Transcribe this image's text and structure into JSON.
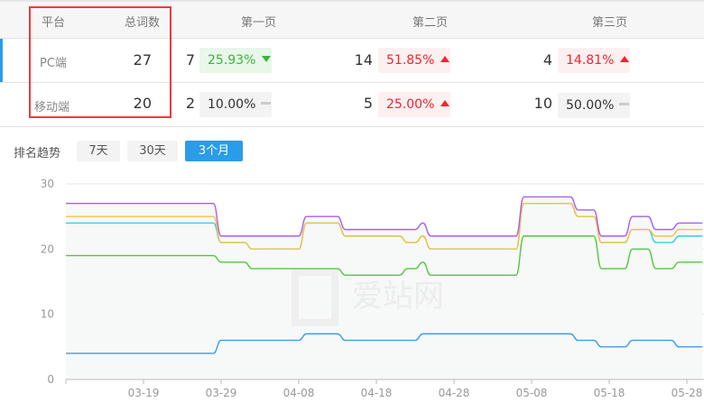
{
  "table": {
    "headers": [
      "平台",
      "总词数",
      "第一页",
      "第二页",
      "第三页"
    ],
    "rows": [
      {
        "platform": "PC端",
        "total": "27",
        "cells": [
          {
            "count": "7",
            "pct": "25.93%",
            "trend": "down"
          },
          {
            "count": "14",
            "pct": "51.85%",
            "trend": "up"
          },
          {
            "count": "4",
            "pct": "14.81%",
            "trend": "up"
          }
        ]
      },
      {
        "platform": "移动端",
        "total": "20",
        "cells": [
          {
            "count": "2",
            "pct": "10.00%",
            "trend": "flat"
          },
          {
            "count": "5",
            "pct": "25.00%",
            "trend": "up"
          },
          {
            "count": "10",
            "pct": "50.00%",
            "trend": "flat"
          }
        ]
      }
    ]
  },
  "trend": {
    "label": "排名趋势",
    "ranges": [
      "7天",
      "30天",
      "3个月"
    ],
    "active_range": "3个月"
  },
  "watermark": "爱站网",
  "colors": {
    "up": "#f5222d",
    "down": "#3cb33c",
    "accent": "#2a9ce8",
    "highlight_box": "#f03a3a"
  },
  "chart_data": {
    "type": "line",
    "x_start": "03-09",
    "x_end": "05-30",
    "x_ticks": [
      "03-19",
      "03-29",
      "04-08",
      "04-18",
      "04-28",
      "05-08",
      "05-18",
      "05-28"
    ],
    "y_ticks": [
      "0",
      "10",
      "20",
      "30"
    ],
    "ylim": [
      0,
      30
    ],
    "grid": true,
    "series": [
      {
        "color": "#a95ff0",
        "changes": [
          [
            "03-09",
            27
          ],
          [
            "03-29",
            22
          ],
          [
            "04-09",
            25
          ],
          [
            "04-14",
            23
          ],
          [
            "04-24",
            24
          ],
          [
            "04-25",
            22
          ],
          [
            "05-07",
            28
          ],
          [
            "05-14",
            26
          ],
          [
            "05-17",
            22
          ],
          [
            "05-21",
            25
          ],
          [
            "05-24",
            23
          ],
          [
            "05-27",
            24
          ]
        ]
      },
      {
        "color": "#f5c342",
        "changes": [
          [
            "03-09",
            25
          ],
          [
            "03-29",
            21
          ],
          [
            "04-02",
            20
          ],
          [
            "04-09",
            24
          ],
          [
            "04-14",
            22
          ],
          [
            "04-22",
            21
          ],
          [
            "04-24",
            22
          ],
          [
            "04-25",
            20
          ],
          [
            "05-07",
            27
          ],
          [
            "05-14",
            25
          ],
          [
            "05-17",
            21
          ],
          [
            "05-21",
            23
          ],
          [
            "05-24",
            22
          ],
          [
            "05-27",
            23
          ]
        ]
      },
      {
        "color": "#33d0e0",
        "changes": [
          [
            "03-09",
            24
          ],
          [
            "03-29",
            21
          ],
          [
            "04-02",
            20
          ],
          [
            "04-09",
            24
          ],
          [
            "04-14",
            22
          ],
          [
            "04-22",
            21
          ],
          [
            "04-24",
            22
          ],
          [
            "04-25",
            20
          ],
          [
            "05-07",
            27
          ],
          [
            "05-14",
            25
          ],
          [
            "05-17",
            21
          ],
          [
            "05-21",
            23
          ],
          [
            "05-24",
            21
          ],
          [
            "05-27",
            22
          ]
        ]
      },
      {
        "color": "#52c93f",
        "changes": [
          [
            "03-09",
            19
          ],
          [
            "03-29",
            18
          ],
          [
            "04-02",
            17
          ],
          [
            "04-14",
            16
          ],
          [
            "04-22",
            17
          ],
          [
            "04-24",
            18
          ],
          [
            "04-25",
            16
          ],
          [
            "05-07",
            22
          ],
          [
            "05-17",
            17
          ],
          [
            "05-21",
            20
          ],
          [
            "05-24",
            17
          ],
          [
            "05-27",
            18
          ]
        ]
      },
      {
        "color": "#3c9de8",
        "changes": [
          [
            "03-09",
            4
          ],
          [
            "03-29",
            6
          ],
          [
            "04-09",
            7
          ],
          [
            "04-14",
            6
          ],
          [
            "04-24",
            7
          ],
          [
            "05-14",
            6
          ],
          [
            "05-17",
            5
          ],
          [
            "05-21",
            6
          ],
          [
            "05-27",
            5
          ]
        ]
      }
    ]
  }
}
